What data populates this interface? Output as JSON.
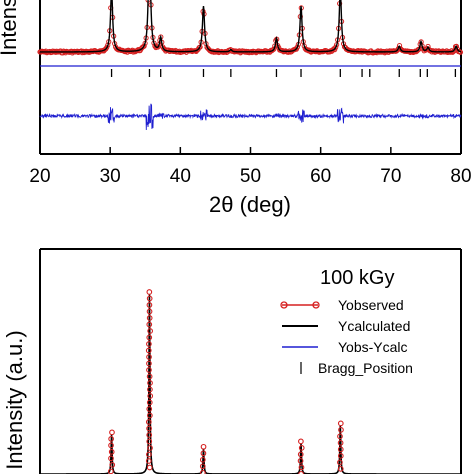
{
  "chart_data": [
    {
      "type": "line",
      "panel": "top",
      "xlabel": "2θ (deg)",
      "ylabel": "Intensity (a.u.)",
      "xlim": [
        20,
        80
      ],
      "xticks": [
        "20",
        "30",
        "40",
        "50",
        "60",
        "70",
        "80"
      ],
      "peaks": [
        {
          "x": 30.2,
          "y": 0.55
        },
        {
          "x": 35.6,
          "y": 1.0
        },
        {
          "x": 37.2,
          "y": 0.12
        },
        {
          "x": 43.3,
          "y": 0.4
        },
        {
          "x": 47.2,
          "y": 0.02
        },
        {
          "x": 53.7,
          "y": 0.12
        },
        {
          "x": 57.2,
          "y": 0.4
        },
        {
          "x": 62.8,
          "y": 0.55
        },
        {
          "x": 71.2,
          "y": 0.05
        },
        {
          "x": 74.3,
          "y": 0.09
        },
        {
          "x": 75.3,
          "y": 0.04
        },
        {
          "x": 79.3,
          "y": 0.05
        }
      ],
      "bragg_positions": [
        30.2,
        35.6,
        37.2,
        43.3,
        47.2,
        53.7,
        57.2,
        62.8,
        65.9,
        67.0,
        71.2,
        74.2,
        75.2,
        79.2
      ],
      "series": [
        {
          "name": "Yobserved",
          "color": "#d62020"
        },
        {
          "name": "Ycalculated",
          "color": "#000000"
        },
        {
          "name": "Yobs-Ycalc",
          "color": "#1f1fd0"
        },
        {
          "name": "Bragg_Position",
          "color": "#000000"
        }
      ]
    },
    {
      "type": "line",
      "panel": "bottom",
      "title": "100 kGy",
      "ylabel": "Intensity (a.u.)",
      "xlim": [
        20,
        80
      ],
      "peaks": [
        {
          "x": 30.2,
          "y": 0.22
        },
        {
          "x": 35.6,
          "y": 1.0
        },
        {
          "x": 43.3,
          "y": 0.14
        },
        {
          "x": 57.2,
          "y": 0.17
        },
        {
          "x": 62.8,
          "y": 0.27
        }
      ],
      "series": [
        {
          "name": "Yobserved",
          "color": "#d62020"
        },
        {
          "name": "Ycalculated",
          "color": "#000000"
        },
        {
          "name": "Yobs-Ycalc",
          "color": "#1f1fd0"
        },
        {
          "name": "Bragg_Position",
          "color": "#000000"
        }
      ]
    }
  ]
}
